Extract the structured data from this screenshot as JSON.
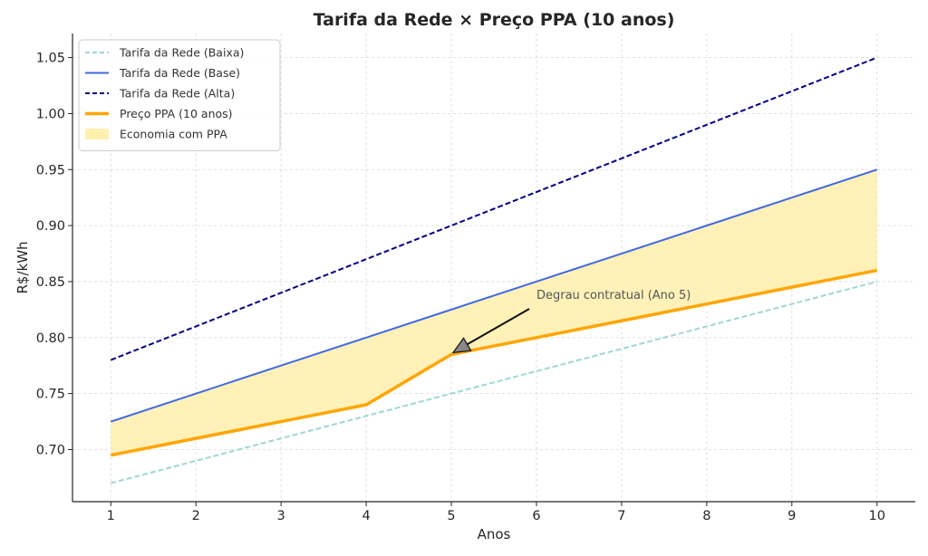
{
  "chart_data": {
    "type": "line",
    "title": "Tarifa da Rede × Preço PPA (10 anos)",
    "xlabel": "Anos",
    "ylabel": "R$/kWh",
    "x": [
      1,
      2,
      3,
      4,
      5,
      6,
      7,
      8,
      9,
      10
    ],
    "xlim": [
      0.55,
      10.45
    ],
    "ylim": [
      0.6535,
      1.0715
    ],
    "xticks": [
      1,
      2,
      3,
      4,
      5,
      6,
      7,
      8,
      9,
      10
    ],
    "yticks": [
      0.7,
      0.75,
      0.8,
      0.85,
      0.9,
      0.95,
      1.0,
      1.05
    ],
    "ytick_labels": [
      "0.70",
      "0.75",
      "0.80",
      "0.85",
      "0.90",
      "0.95",
      "1.00",
      "1.05"
    ],
    "grid": true,
    "legend_position": "top-left",
    "series": [
      {
        "name": "Tarifa da Rede (Baixa)",
        "style": "dashed",
        "color": "#9fd6d6",
        "values": [
          0.67,
          0.69,
          0.71,
          0.73,
          0.75,
          0.77,
          0.79,
          0.81,
          0.83,
          0.85
        ]
      },
      {
        "name": "Tarifa da Rede (Base)",
        "style": "solid",
        "color": "#4169e1",
        "values": [
          0.725,
          0.75,
          0.775,
          0.8,
          0.825,
          0.85,
          0.875,
          0.9,
          0.925,
          0.95
        ]
      },
      {
        "name": "Tarifa da Rede (Alta)",
        "style": "dashed",
        "color": "#00008b",
        "values": [
          0.78,
          0.81,
          0.84,
          0.87,
          0.9,
          0.93,
          0.96,
          0.99,
          1.02,
          1.05
        ]
      },
      {
        "name": "Preço PPA (10 anos)",
        "style": "solid-thick",
        "color": "#ffa500",
        "values": [
          0.695,
          0.71,
          0.725,
          0.74,
          0.785,
          0.8,
          0.815,
          0.83,
          0.845,
          0.86
        ]
      }
    ],
    "fill": {
      "name": "Economia com PPA",
      "color": "#fff0b0",
      "between": [
        "Tarifa da Rede (Base)",
        "Preço PPA (10 anos)"
      ]
    },
    "annotation": {
      "text": "Degrau contratual (Ano 5)",
      "point": [
        5,
        0.785
      ],
      "text_at": [
        6,
        0.8345
      ]
    }
  }
}
